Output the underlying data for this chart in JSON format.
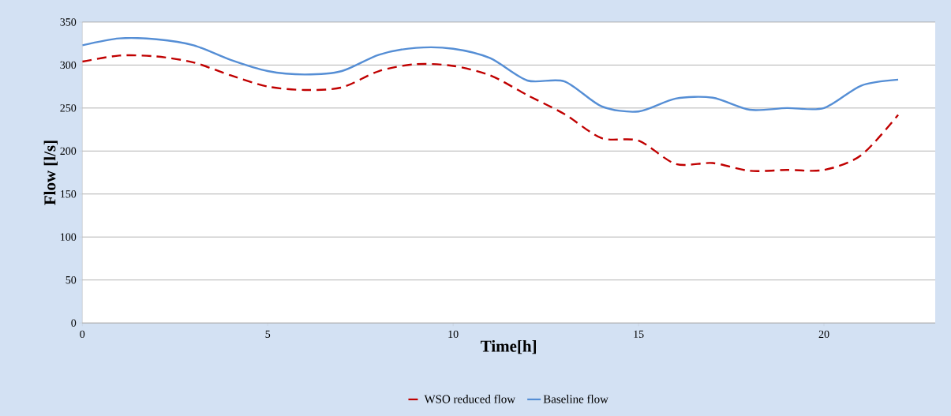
{
  "chart_data": {
    "type": "line",
    "xlabel": "Time[h]",
    "ylabel": "Flow  [l/s]",
    "x": [
      0,
      1,
      2,
      3,
      4,
      5,
      6,
      7,
      8,
      9,
      10,
      11,
      12,
      13,
      14,
      15,
      16,
      17,
      18,
      19,
      20,
      21,
      22
    ],
    "series": [
      {
        "name": "WSO reduced flow",
        "color": "#c00000",
        "line_style": "dashed",
        "values": [
          304,
          311,
          310,
          303,
          288,
          275,
          271,
          274,
          293,
          301,
          299,
          288,
          265,
          243,
          215,
          212,
          185,
          186,
          177,
          178,
          178,
          195,
          242
        ]
      },
      {
        "name": "Baseline flow",
        "color": "#558ed5",
        "line_style": "solid",
        "values": [
          323,
          331,
          330,
          323,
          306,
          293,
          289,
          293,
          312,
          320,
          319,
          308,
          282,
          281,
          252,
          246,
          261,
          262,
          248,
          250,
          250,
          276,
          283
        ]
      }
    ],
    "xlim": [
      0,
      23
    ],
    "ylim": [
      0,
      350
    ],
    "xticks": [
      0,
      5,
      10,
      15,
      20
    ],
    "yticks": [
      0,
      50,
      100,
      150,
      200,
      250,
      300,
      350
    ],
    "grid": "y",
    "legend": "bottom",
    "marker": "none"
  }
}
